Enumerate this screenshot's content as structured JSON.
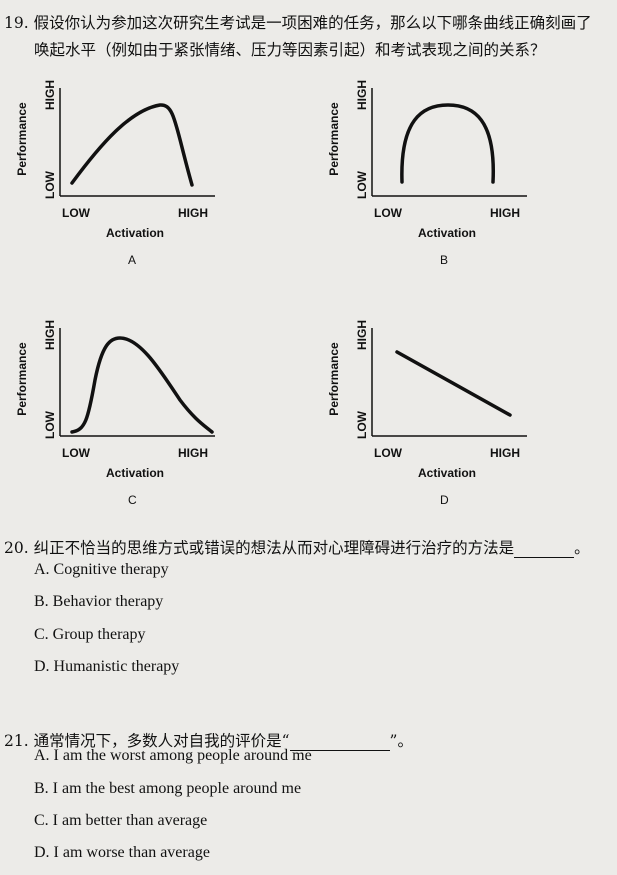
{
  "q19": {
    "number": "19.",
    "line1": "假设你认为参加这次研究生考试是一项困难的任务，那么以下哪条曲线正确刻画了",
    "line2": "唤起水平（例如由于紧张情绪、压力等因素引起）和考试表现之间的关系？",
    "graphs": [
      {
        "letter": "A",
        "ylabel": "Performance",
        "yhigh": "HIGH",
        "ylow": "LOW",
        "xlow": "LOW",
        "xhigh": "HIGH",
        "xlabel": "Activation",
        "shape": "rise-then-sharp-fall"
      },
      {
        "letter": "B",
        "ylabel": "Performance",
        "yhigh": "HIGH",
        "ylow": "LOW",
        "xlow": "LOW",
        "xhigh": "HIGH",
        "xlabel": "Activation",
        "shape": "symmetric-inverted-U"
      },
      {
        "letter": "C",
        "ylabel": "Performance",
        "yhigh": "HIGH",
        "ylow": "LOW",
        "xlow": "LOW",
        "xhigh": "HIGH",
        "xlabel": "Activation",
        "shape": "sharp-rise-then-gradual-fall"
      },
      {
        "letter": "D",
        "ylabel": "Performance",
        "yhigh": "HIGH",
        "ylow": "LOW",
        "xlow": "LOW",
        "xhigh": "HIGH",
        "xlabel": "Activation",
        "shape": "linear-decrease"
      }
    ]
  },
  "q20": {
    "number": "20.",
    "stem": "纠正不恰当的思维方式或错误的想法从而对心理障碍进行治疗的方法是",
    "end": "。",
    "options": [
      "A.  Cognitive therapy",
      "B.  Behavior therapy",
      "C.  Group therapy",
      "D.  Humanistic therapy"
    ]
  },
  "q21": {
    "number": "21.",
    "stem": "通常情况下，多数人对自我的评价是“",
    "end": "”。",
    "options": [
      "A.  I am the worst among people around me",
      "B.  I am the best among people around me",
      "C.  I am better than average",
      "D.  I am worse than average"
    ]
  }
}
